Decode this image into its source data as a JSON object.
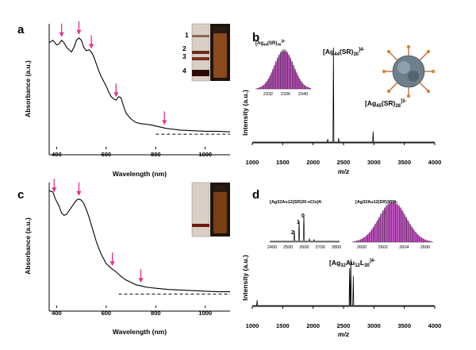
{
  "chart_data": [
    {
      "panel": "a",
      "type": "line",
      "xlabel": "Wavelength (nm)",
      "ylabel": "Absorbance (a.u.)",
      "xticks": [
        "400",
        "600",
        "800",
        "1000"
      ],
      "xlim": [
        370,
        1100
      ],
      "ylim": [
        0,
        1
      ],
      "series": [
        {
          "x": [
            370,
            385,
            400,
            410,
            420,
            430,
            440,
            450,
            460,
            470,
            480,
            490,
            500,
            510,
            520,
            530,
            540,
            550,
            560,
            570,
            580,
            590,
            600,
            610,
            620,
            630,
            640,
            650,
            660,
            670,
            680,
            700,
            720,
            740,
            760,
            780,
            800,
            820,
            840,
            860,
            880,
            900,
            950,
            1000,
            1050,
            1100
          ],
          "y": [
            0.84,
            0.86,
            0.82,
            0.83,
            0.86,
            0.84,
            0.8,
            0.78,
            0.76,
            0.8,
            0.86,
            0.88,
            0.86,
            0.8,
            0.77,
            0.78,
            0.76,
            0.72,
            0.66,
            0.6,
            0.55,
            0.51,
            0.47,
            0.42,
            0.38,
            0.36,
            0.35,
            0.38,
            0.37,
            0.3,
            0.24,
            0.19,
            0.16,
            0.15,
            0.145,
            0.14,
            0.13,
            0.12,
            0.11,
            0.105,
            0.1,
            0.095,
            0.09,
            0.085,
            0.085,
            0.08
          ]
        }
      ],
      "baseline_dashed": {
        "x": [
          800,
          1100
        ],
        "y": 0.06
      },
      "arrows_at_nm": [
        420,
        490,
        540,
        640,
        835
      ],
      "inset_vial_labels": [
        "1",
        "2",
        "3",
        "4"
      ]
    },
    {
      "panel": "b",
      "type": "line",
      "xlabel": "m/z",
      "ylabel": "Intensity (a.u.)",
      "xticks": [
        "1000",
        "1500",
        "2000",
        "2500",
        "3000",
        "3500",
        "4000"
      ],
      "xlim": [
        1000,
        4000
      ],
      "peaks": [
        {
          "mz": 2334,
          "intensity": 1.0,
          "label_main": "[Ag",
          "label_sub": "44",
          "label_mid": "(SR)",
          "label_sub2": "30",
          "label_sup": "]4-"
        },
        {
          "mz": 2987,
          "intensity": 0.12,
          "label_main": "[Ag",
          "label_sub": "45",
          "label_mid": "(SR)",
          "label_sub2": "28",
          "label_sup": "]3-"
        },
        {
          "mz": 2240,
          "intensity": 0.04
        },
        {
          "mz": 2420,
          "intensity": 0.05
        }
      ],
      "inset": {
        "title_main": "[Ag",
        "title_sub": "44",
        "title_mid": "(SR)",
        "title_sub2": "30",
        "title_sup": "]4-",
        "xticks": [
          "2332",
          "2336",
          "2340"
        ],
        "xlim": [
          2330,
          2342
        ]
      }
    },
    {
      "panel": "c",
      "type": "line",
      "xlabel": "Wavelength (nm)",
      "ylabel": "Absorbance (a.u.)",
      "xticks": [
        "400",
        "600",
        "800",
        "1000"
      ],
      "xlim": [
        370,
        1100
      ],
      "ylim": [
        0,
        1
      ],
      "series": [
        {
          "x": [
            370,
            385,
            395,
            410,
            420,
            430,
            440,
            450,
            460,
            470,
            480,
            490,
            500,
            510,
            520,
            530,
            540,
            550,
            560,
            570,
            580,
            600,
            620,
            640,
            660,
            680,
            700,
            720,
            740,
            760,
            780,
            800,
            850,
            900,
            950,
            1000,
            1050,
            1100
          ],
          "y": [
            0.93,
            0.92,
            0.86,
            0.8,
            0.74,
            0.72,
            0.73,
            0.76,
            0.79,
            0.82,
            0.85,
            0.86,
            0.85,
            0.82,
            0.77,
            0.71,
            0.64,
            0.57,
            0.5,
            0.44,
            0.39,
            0.31,
            0.27,
            0.24,
            0.2,
            0.17,
            0.15,
            0.13,
            0.12,
            0.11,
            0.105,
            0.1,
            0.09,
            0.085,
            0.08,
            0.075,
            0.07,
            0.07
          ]
        }
      ],
      "baseline_dashed": {
        "x": [
          650,
          1100
        ],
        "y": 0.05
      },
      "arrows_at_nm": [
        390,
        490,
        625,
        740
      ]
    },
    {
      "panel": "d",
      "type": "line",
      "xlabel": "m/z",
      "ylabel": "Intensity (a.u.)",
      "xticks": [
        "1000",
        "1500",
        "2000",
        "2500",
        "3000",
        "3500",
        "4000"
      ],
      "xlim": [
        1000,
        4000
      ],
      "peaks": [
        {
          "mz": 2620,
          "intensity": 0.62,
          "label_main": "[Ag",
          "label_sub": "32",
          "label_mid": "Au",
          "label_sub2": "12",
          "label_tail": "L",
          "label_sub3": "30",
          "label_sup": "]4-"
        },
        {
          "mz": 1080,
          "intensity": 0.08
        },
        {
          "mz": 2600,
          "intensity": 0.5
        },
        {
          "mz": 2660,
          "intensity": 0.4
        }
      ],
      "inset_left": {
        "title": "[Ag32Au12(SR)30-xClx]4-",
        "xticks": [
          "2400",
          "2500",
          "2600",
          "2700",
          "2800"
        ],
        "peak_numbers": [
          "2",
          "1",
          "0"
        ]
      },
      "inset_right": {
        "title": "[Ag32Au12(SR)30]4-",
        "xticks": [
          "2600",
          "2602",
          "2604",
          "2606"
        ]
      }
    }
  ],
  "panels": {
    "a": {
      "letter": "a"
    },
    "b": {
      "letter": "b"
    },
    "c": {
      "letter": "c"
    },
    "d": {
      "letter": "d"
    }
  },
  "colors": {
    "arrow": "#e8318a",
    "line": "#000000",
    "isotope_fill": "#cc33cc",
    "isotope_line": "#111111"
  }
}
